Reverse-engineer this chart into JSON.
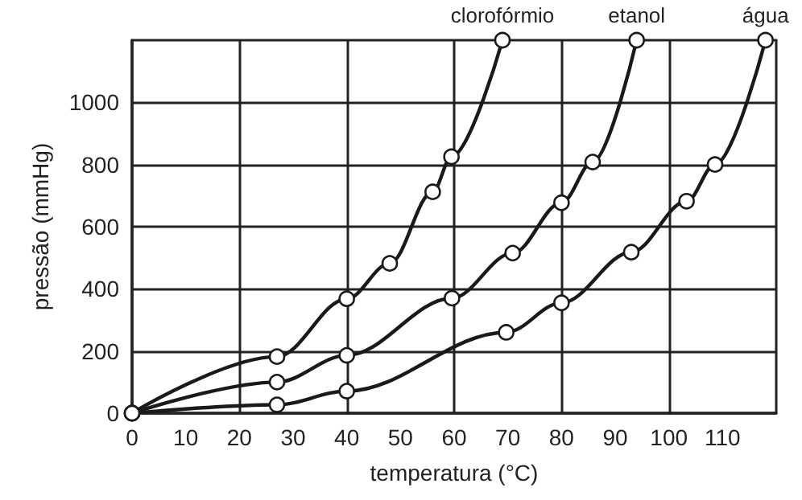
{
  "chart_data": {
    "type": "line",
    "xlabel": "temperatura (°C)",
    "ylabel": "pressão (mmHg)",
    "xlim": [
      0,
      120
    ],
    "xticks": [
      0,
      10,
      20,
      30,
      40,
      50,
      60,
      70,
      80,
      90,
      100,
      110
    ],
    "ylim": [
      0,
      1200
    ],
    "yticks": [
      0,
      200,
      400,
      600,
      800,
      1000
    ],
    "grid": true,
    "legend": false,
    "marker": "circle",
    "line_style": "solid",
    "series": [
      {
        "name": "clorofórmio",
        "color": "#1a1a1a",
        "x": [
          0,
          27,
          40,
          48,
          56,
          59.5,
          69
        ],
        "values": [
          0,
          182,
          368,
          482,
          712,
          825,
          1200
        ]
      },
      {
        "name": "etanol",
        "color": "#1a1a1a",
        "x": [
          0,
          27,
          40,
          59.6,
          70.9,
          80,
          85.8,
          94
        ],
        "values": [
          0,
          100,
          186,
          370,
          515,
          677,
          808,
          1200
        ]
      },
      {
        "name": "água",
        "color": "#1a1a1a",
        "x": [
          0,
          27,
          40,
          69.7,
          80,
          93,
          103.3,
          108.6,
          118
        ],
        "values": [
          0,
          27,
          71,
          260,
          355,
          518,
          682,
          800,
          1200
        ]
      }
    ]
  }
}
